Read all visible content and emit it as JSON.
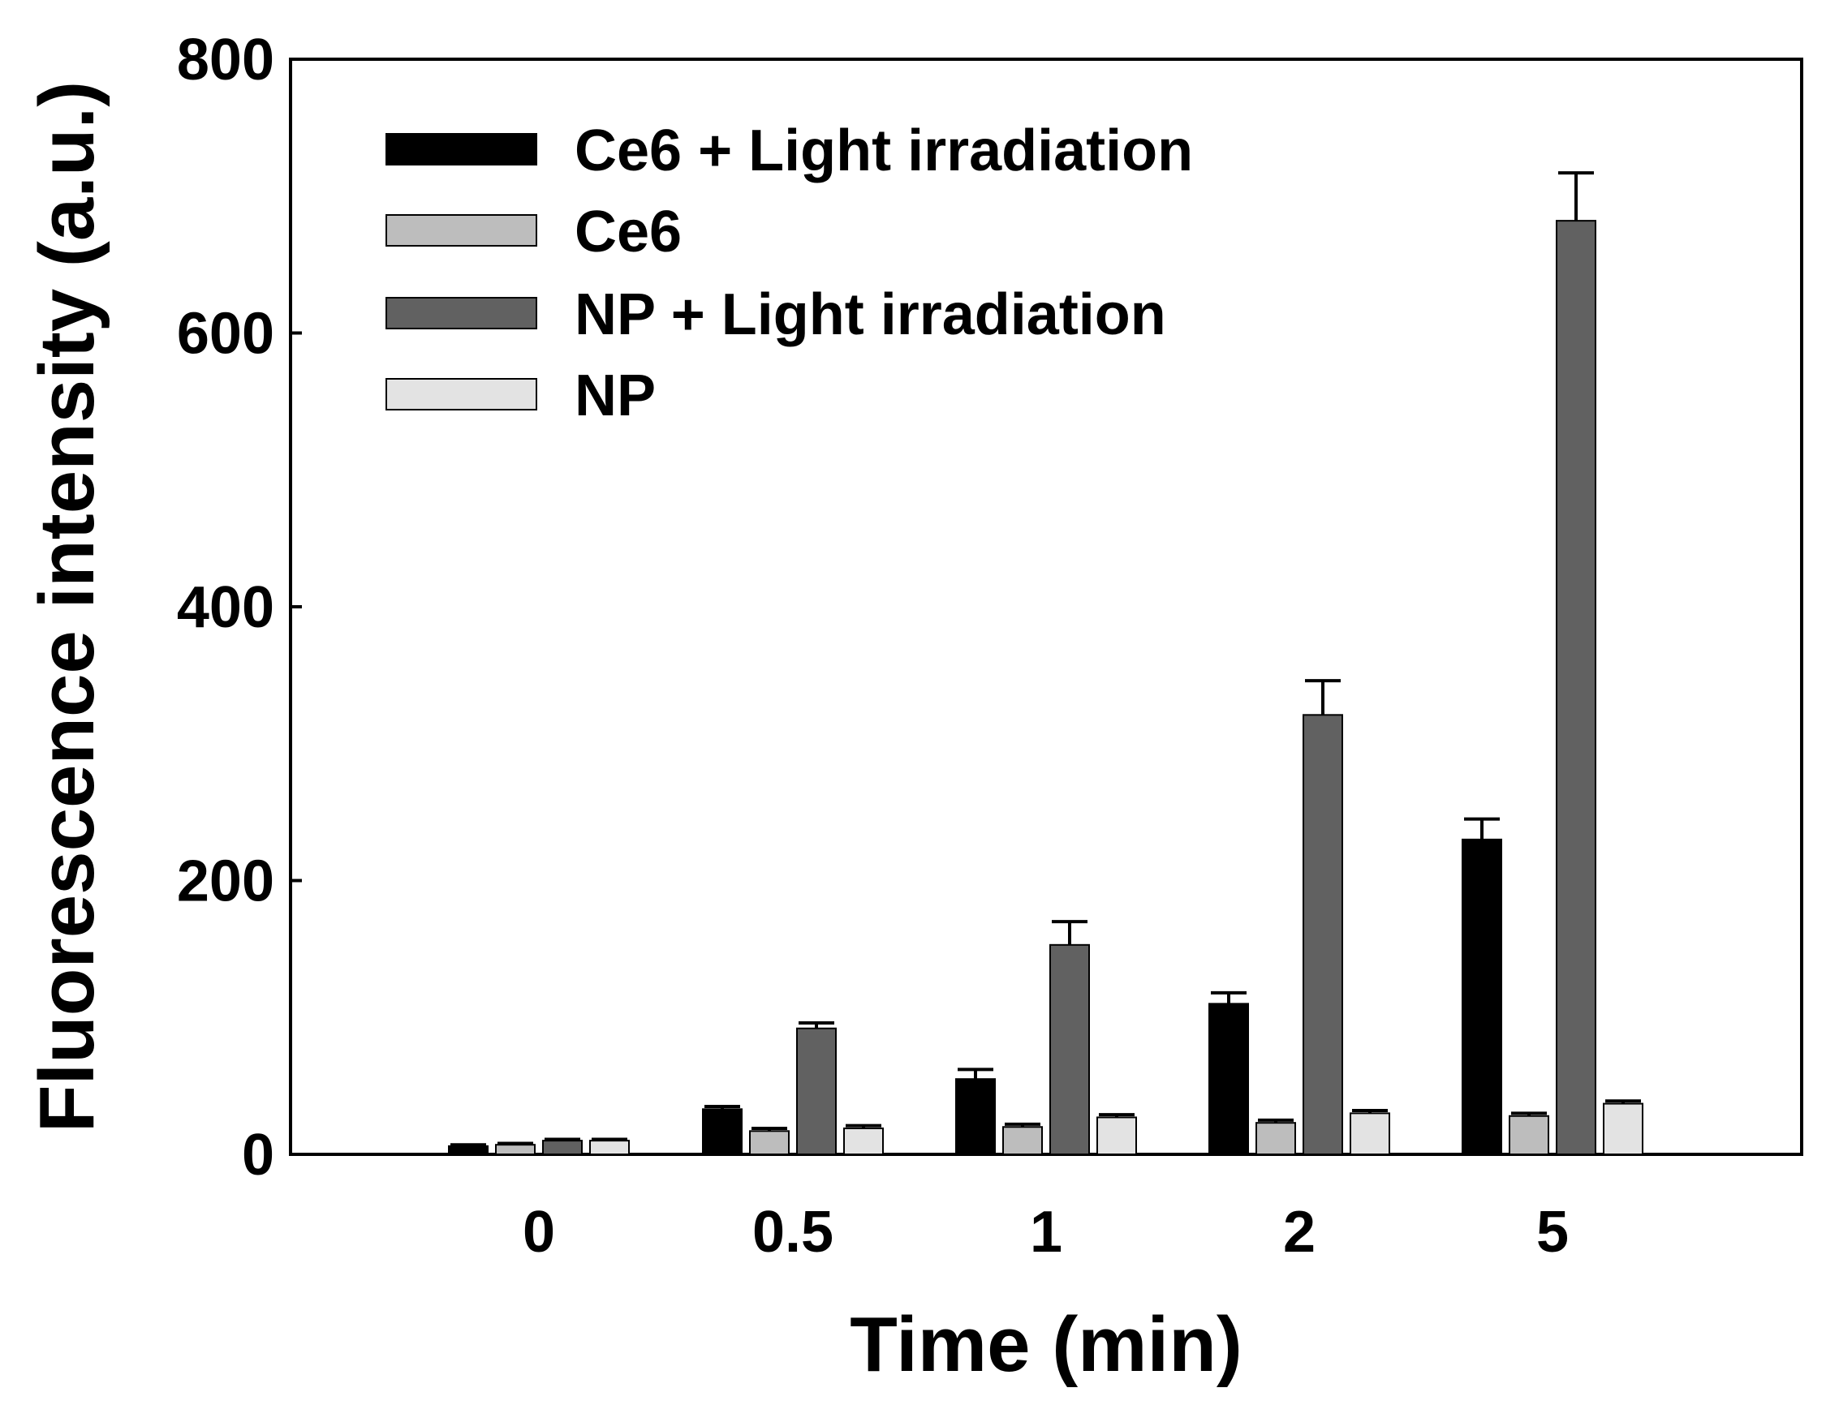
{
  "chart_data": {
    "type": "bar",
    "title": "",
    "xlabel": "Time (min)",
    "ylabel": "Fluorescence intensity (a.u.)",
    "categories": [
      "0",
      "0.5",
      "1",
      "2",
      "5"
    ],
    "ylim": [
      0,
      800
    ],
    "yticks": [
      "0",
      "200",
      "400",
      "600",
      "800"
    ],
    "grid": false,
    "legend_position": "top-left",
    "series": [
      {
        "name": "Ce6 + Light irradiation",
        "color": "#000000",
        "values": [
          6,
          33,
          55,
          110,
          230
        ],
        "errors": [
          1,
          2,
          7,
          8,
          15
        ]
      },
      {
        "name": "Ce6",
        "color": "#bdbdbd",
        "values": [
          7,
          17,
          20,
          23,
          28
        ],
        "errors": [
          1,
          2,
          2,
          2,
          2
        ]
      },
      {
        "name": "NP + Light irradiation",
        "color": "#616161",
        "values": [
          10,
          92,
          153,
          321,
          682
        ],
        "errors": [
          1,
          4,
          17,
          25,
          35
        ]
      },
      {
        "name": "NP",
        "color": "#e3e3e3",
        "values": [
          10,
          19,
          27,
          30,
          37
        ],
        "errors": [
          1,
          2,
          2,
          2,
          2
        ]
      }
    ]
  }
}
